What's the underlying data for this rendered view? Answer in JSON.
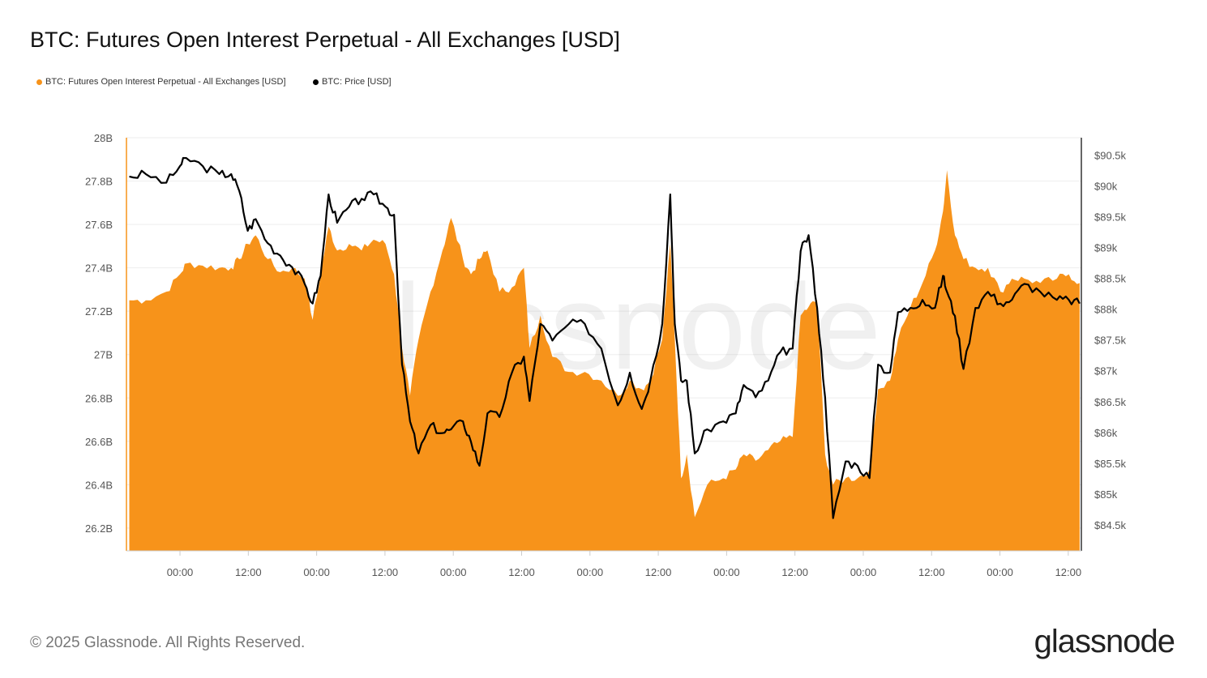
{
  "title": "BTC: Futures Open Interest Perpetual - All Exchanges [USD]",
  "footer": "© 2025 Glassnode. All Rights Reserved.",
  "logo": "glassnode",
  "watermark": "glassnode",
  "chart_data": {
    "type": "area+line",
    "title": "BTC: Futures Open Interest Perpetual - All Exchanges [USD]",
    "xlabel": "",
    "x_unit": "hours relative to first 00:00 tick",
    "xlim": [
      -9.4,
      158.3
    ],
    "x_ticks": [
      {
        "v": 0,
        "label": "00:00"
      },
      {
        "v": 12,
        "label": "12:00"
      },
      {
        "v": 24,
        "label": "00:00"
      },
      {
        "v": 36,
        "label": "12:00"
      },
      {
        "v": 48,
        "label": "00:00"
      },
      {
        "v": 60,
        "label": "12:00"
      },
      {
        "v": 72,
        "label": "00:00"
      },
      {
        "v": 84,
        "label": "12:00"
      },
      {
        "v": 96,
        "label": "00:00"
      },
      {
        "v": 108,
        "label": "12:00"
      },
      {
        "v": 120,
        "label": "00:00"
      },
      {
        "v": 132,
        "label": "12:00"
      },
      {
        "v": 144,
        "label": "00:00"
      },
      {
        "v": 156,
        "label": "12:00"
      }
    ],
    "y_left": {
      "lim": [
        26.095,
        28.0
      ],
      "ticks": [
        {
          "v": 28,
          "label": "28B"
        },
        {
          "v": 27.8,
          "label": "27.8B"
        },
        {
          "v": 27.6,
          "label": "27.6B"
        },
        {
          "v": 27.4,
          "label": "27.4B"
        },
        {
          "v": 27.2,
          "label": "27.2B"
        },
        {
          "v": 27,
          "label": "27B"
        },
        {
          "v": 26.8,
          "label": "26.8B"
        },
        {
          "v": 26.6,
          "label": "26.6B"
        },
        {
          "v": 26.4,
          "label": "26.4B"
        },
        {
          "v": 26.2,
          "label": "26.2B"
        }
      ]
    },
    "y_right": {
      "lim": [
        84.08,
        90.78
      ],
      "ticks": [
        {
          "v": 90.5,
          "label": "$90.5k"
        },
        {
          "v": 90,
          "label": "$90k"
        },
        {
          "v": 89.5,
          "label": "$89.5k"
        },
        {
          "v": 89,
          "label": "$89k"
        },
        {
          "v": 88.5,
          "label": "$88.5k"
        },
        {
          "v": 88,
          "label": "$88k"
        },
        {
          "v": 87.5,
          "label": "$87.5k"
        },
        {
          "v": 87,
          "label": "$87k"
        },
        {
          "v": 86.5,
          "label": "$86.5k"
        },
        {
          "v": 86,
          "label": "$86k"
        },
        {
          "v": 85.5,
          "label": "$85.5k"
        },
        {
          "v": 85,
          "label": "$85k"
        },
        {
          "v": 84.5,
          "label": "$84.5k"
        }
      ]
    },
    "grid": true,
    "legend_position": "top-left",
    "x": [
      -8.9,
      -6,
      -2.4,
      0,
      1.1,
      4,
      6.9,
      9,
      10.4,
      11.9,
      13.3,
      15.4,
      17.6,
      19.7,
      21.9,
      23.3,
      24.7,
      26.1,
      27.6,
      29.7,
      31.9,
      34,
      36.1,
      37.6,
      39,
      40.4,
      41.9,
      44,
      46.1,
      47.6,
      49.7,
      51.1,
      52.6,
      54,
      56.1,
      58.3,
      60.4,
      61.4,
      63.3,
      65.4,
      68.3,
      71.1,
      74,
      76.9,
      79,
      81.1,
      82.6,
      84.7,
      86.1,
      86.9,
      88,
      89,
      90.4,
      92.6,
      95.4,
      97.6,
      99,
      101.1,
      103.3,
      105.4,
      107.6,
      109,
      110.4,
      111.9,
      113.3,
      114.7,
      116.9,
      119,
      121.1,
      122.6,
      124.7,
      126.1,
      128.3,
      130.4,
      132.6,
      134,
      134.7,
      136.1,
      137.6,
      139.7,
      141.9,
      144.1,
      146.1,
      148.3,
      151.1,
      154,
      156.1,
      158
    ],
    "series": [
      {
        "name": "BTC: Futures Open Interest Perpetual - All Exchanges [USD]",
        "axis": "left",
        "unit": "B USD",
        "color": "#F7931A",
        "type": "area",
        "values": [
          27.25,
          27.25,
          27.29,
          27.37,
          27.42,
          27.41,
          27.4,
          27.4,
          27.44,
          27.51,
          27.55,
          27.44,
          27.38,
          27.4,
          27.35,
          27.16,
          27.37,
          27.59,
          27.48,
          27.51,
          27.48,
          27.53,
          27.51,
          27.37,
          27.03,
          26.81,
          27.07,
          27.29,
          27.48,
          27.63,
          27.44,
          27.37,
          27.44,
          27.48,
          27.29,
          27.31,
          27.4,
          27.03,
          27.18,
          26.99,
          26.92,
          26.92,
          26.88,
          26.81,
          26.88,
          26.84,
          26.88,
          27.07,
          27.51,
          27.07,
          26.43,
          26.54,
          26.25,
          26.4,
          26.43,
          26.47,
          26.54,
          26.51,
          26.56,
          26.6,
          26.62,
          27.18,
          27.22,
          27.25,
          26.54,
          26.4,
          26.43,
          26.43,
          26.47,
          26.84,
          26.88,
          27.07,
          27.22,
          27.33,
          27.48,
          27.66,
          27.85,
          27.55,
          27.44,
          27.4,
          27.4,
          27.29,
          27.35,
          27.35,
          27.33,
          27.35,
          27.37,
          27.33
        ]
      },
      {
        "name": "BTC: Price [USD]",
        "axis": "right",
        "unit": "k USD",
        "color": "#000000",
        "type": "line",
        "values": [
          90.15,
          90.19,
          90.05,
          90.32,
          90.45,
          90.32,
          90.19,
          90.19,
          89.92,
          89.27,
          89.46,
          89.07,
          88.87,
          88.68,
          88.41,
          88.09,
          88.54,
          89.86,
          89.4,
          89.66,
          89.79,
          89.86,
          89.66,
          89.53,
          87.1,
          86.18,
          85.66,
          86.12,
          85.99,
          86.05,
          86.18,
          85.85,
          85.46,
          86.31,
          86.25,
          86.97,
          87.23,
          86.51,
          87.76,
          87.49,
          87.76,
          87.76,
          87.36,
          86.44,
          86.97,
          86.38,
          86.84,
          87.76,
          89.86,
          87.76,
          86.84,
          86.84,
          85.66,
          86.05,
          86.18,
          86.31,
          86.77,
          86.57,
          86.84,
          87.3,
          87.36,
          88.94,
          89.2,
          88.02,
          86.57,
          84.61,
          85.53,
          85.46,
          85.26,
          87.1,
          86.97,
          87.95,
          88.02,
          88.15,
          88.02,
          88.54,
          88.28,
          87.89,
          87.03,
          88.02,
          88.28,
          88.09,
          88.15,
          88.41,
          88.28,
          88.15,
          88.15,
          88.09
        ]
      }
    ]
  }
}
